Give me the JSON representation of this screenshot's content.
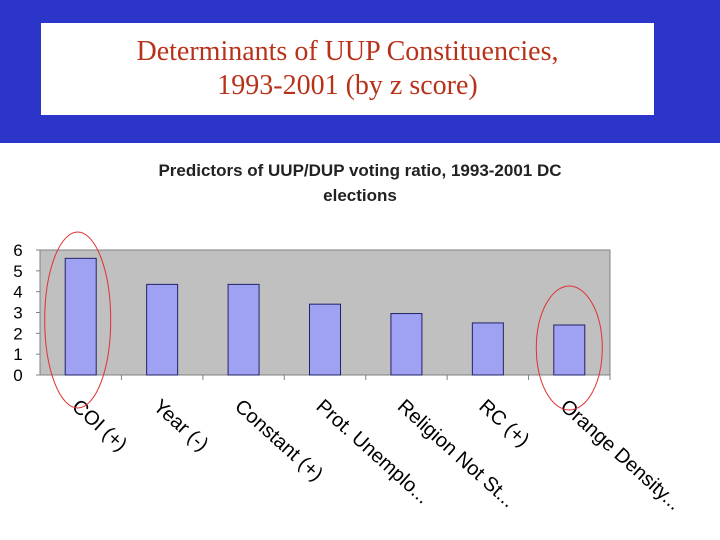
{
  "slide": {
    "title_line1": "Determinants of UUP Constituencies,",
    "title_line2": "1993-2001 (by z score)"
  },
  "chart_data": {
    "type": "bar",
    "title_line1": "Predictors of UUP/DUP voting ratio, 1993-2001 DC",
    "title_line2": "elections",
    "categories": [
      "COI (+)",
      "Year (-)",
      "Constant (+)",
      "Prot. Unemplo...",
      "Religion Not St...",
      "RC (+)",
      "Orange Density..."
    ],
    "values": [
      5.6,
      4.35,
      4.35,
      3.4,
      2.95,
      2.5,
      2.4
    ],
    "yticks": [
      "0",
      "1",
      "2",
      "3",
      "4",
      "5",
      "6"
    ],
    "ylim": [
      0,
      6
    ],
    "xlabel": "",
    "ylabel": "",
    "grid": false,
    "colors": {
      "bar": "#9fa2f2",
      "plot_background": "#c0c0c0",
      "highlight_circle": "#e03030",
      "title_text": "#b8321a",
      "slide_background": "#2b35c8"
    },
    "highlighted_categories": [
      "COI (+)",
      "Orange Density..."
    ]
  }
}
